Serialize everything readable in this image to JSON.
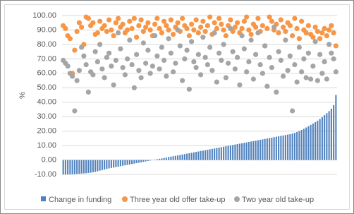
{
  "chart_data": {
    "type": "bar_scatter",
    "y_label": "%",
    "ylim": [
      -10,
      100
    ],
    "yticks": [
      {
        "value": -10,
        "label": "-10.00"
      },
      {
        "value": 0,
        "label": "0.00"
      },
      {
        "value": 10,
        "label": "10.00"
      },
      {
        "value": 20,
        "label": "20.00"
      },
      {
        "value": 30,
        "label": "30.00"
      },
      {
        "value": 40,
        "label": "40.00"
      },
      {
        "value": 50,
        "label": "50.00"
      },
      {
        "value": 60,
        "label": "60.00"
      },
      {
        "value": 70,
        "label": "70.00"
      },
      {
        "value": 80,
        "label": "80.00"
      },
      {
        "value": 90,
        "label": "90.00"
      },
      {
        "value": 100,
        "label": "100.00"
      }
    ],
    "grid": true,
    "legend": "bottom",
    "categories": [
      null,
      null,
      null,
      null,
      null,
      null,
      null,
      null,
      null,
      null,
      null,
      null,
      null,
      null,
      null,
      null,
      null,
      null,
      null,
      null,
      null,
      null,
      null,
      null,
      null,
      null,
      null,
      null,
      null,
      null,
      null,
      null,
      null,
      null,
      null,
      null,
      null,
      null,
      null,
      null,
      null,
      null,
      null,
      null,
      null,
      null,
      null,
      null,
      null,
      null,
      null,
      null,
      null,
      null,
      null,
      null,
      null,
      null,
      null,
      null,
      null,
      null,
      null,
      null,
      null,
      null,
      null,
      null,
      null,
      null,
      null,
      null,
      null,
      null,
      null,
      null,
      null,
      null,
      null,
      null,
      null,
      null,
      null,
      null,
      null,
      null,
      null,
      null,
      null,
      null,
      null,
      null,
      null,
      null,
      null,
      null,
      null,
      null,
      null,
      null,
      null,
      null,
      null,
      null,
      null,
      null,
      null,
      null,
      null,
      null,
      null,
      null,
      null,
      null,
      null,
      null,
      null,
      null,
      null,
      null
    ],
    "series": [
      {
        "name": "Change in funding",
        "kind": "bar",
        "color": "#4f81bd",
        "values": [
          -10,
          -10,
          -10,
          -9.9,
          -9.8,
          -9.7,
          -9.6,
          -9.5,
          -9.4,
          -9.3,
          -9.2,
          -9.0,
          -8.8,
          -8.5,
          -8.2,
          -7.8,
          -7.4,
          -7.0,
          -6.6,
          -6.2,
          -5.8,
          -5.5,
          -5.2,
          -4.9,
          -4.6,
          -4.3,
          -4.0,
          -3.7,
          -3.4,
          -3.1,
          -2.8,
          -2.5,
          -2.2,
          -1.9,
          -1.6,
          -1.3,
          -1.0,
          -0.7,
          -0.4,
          -0.1,
          0.2,
          0.5,
          0.8,
          1.1,
          1.4,
          1.7,
          2.0,
          2.3,
          2.6,
          2.9,
          3.2,
          3.5,
          3.8,
          4.1,
          4.4,
          4.7,
          5.0,
          5.3,
          5.6,
          5.9,
          6.2,
          6.5,
          6.8,
          7.1,
          7.4,
          7.7,
          8.0,
          8.3,
          8.6,
          8.9,
          9.2,
          9.5,
          9.8,
          10.1,
          10.4,
          10.7,
          11.0,
          11.3,
          11.6,
          11.9,
          12.2,
          12.5,
          12.8,
          13.1,
          13.4,
          13.7,
          14.0,
          14.3,
          14.6,
          14.9,
          15.2,
          15.5,
          15.8,
          16.1,
          16.4,
          16.7,
          17.0,
          17.3,
          17.6,
          17.9,
          18.3,
          18.8,
          19.4,
          20.0,
          20.8,
          21.6,
          22.5,
          23.4,
          24.3,
          25.2,
          26.2,
          27.2,
          28.4,
          29.6,
          31.0,
          32.4,
          33.8,
          35.5,
          38.0,
          45.0
        ]
      },
      {
        "name": "Three year old offer take-up",
        "kind": "scatter",
        "color": "#f79646",
        "values": [
          93,
          91,
          86,
          84,
          60,
          76,
          89,
          95,
          92,
          80,
          99,
          98,
          93,
          95,
          87,
          88,
          96,
          91,
          93,
          89,
          97,
          90,
          86,
          95,
          98,
          92,
          94,
          88,
          90,
          96,
          91,
          98,
          85,
          93,
          97,
          89,
          92,
          95,
          90,
          86,
          94,
          98,
          91,
          88,
          96,
          93,
          90,
          97,
          87,
          92,
          95,
          89,
          98,
          93,
          91,
          86,
          94,
          90,
          97,
          88,
          92,
          96,
          89,
          93,
          99,
          87,
          95,
          91,
          98,
          94,
          90,
          86,
          93,
          97,
          89,
          92,
          95,
          88,
          91,
          96,
          99,
          90,
          87,
          94,
          92,
          98,
          89,
          93,
          79,
          91,
          99,
          96,
          90,
          94,
          88,
          97,
          92,
          89,
          95,
          93,
          86,
          98,
          91,
          84,
          96,
          90,
          88,
          93,
          87,
          85,
          92,
          89,
          84,
          88,
          91,
          86,
          90,
          93,
          88,
          79
        ]
      },
      {
        "name": "Two year old take-up",
        "kind": "scatter",
        "color": "#a5a5a5",
        "values": [
          69,
          67,
          65,
          60,
          58,
          34,
          55,
          62,
          78,
          72,
          66,
          47,
          61,
          59,
          75,
          68,
          80,
          63,
          57,
          71,
          74,
          65,
          52,
          69,
          88,
          77,
          64,
          59,
          70,
          83,
          66,
          50,
          73,
          62,
          57,
          81,
          67,
          76,
          60,
          65,
          86,
          72,
          63,
          78,
          69,
          58,
          84,
          74,
          61,
          67,
          90,
          79,
          55,
          70,
          76,
          49,
          82,
          68,
          64,
          73,
          59,
          85,
          71,
          66,
          78,
          62,
          88,
          54,
          74,
          69,
          80,
          57,
          67,
          91,
          75,
          63,
          71,
          52,
          86,
          77,
          61,
          68,
          83,
          56,
          73,
          88,
          66,
          60,
          79,
          51,
          71,
          64,
          92,
          47,
          75,
          69,
          58,
          83,
          62,
          72,
          34,
          66,
          54,
          78,
          61,
          70,
          57,
          74,
          56,
          65,
          82,
          55,
          73,
          60,
          68,
          56,
          80,
          74,
          70,
          61
        ]
      }
    ]
  }
}
